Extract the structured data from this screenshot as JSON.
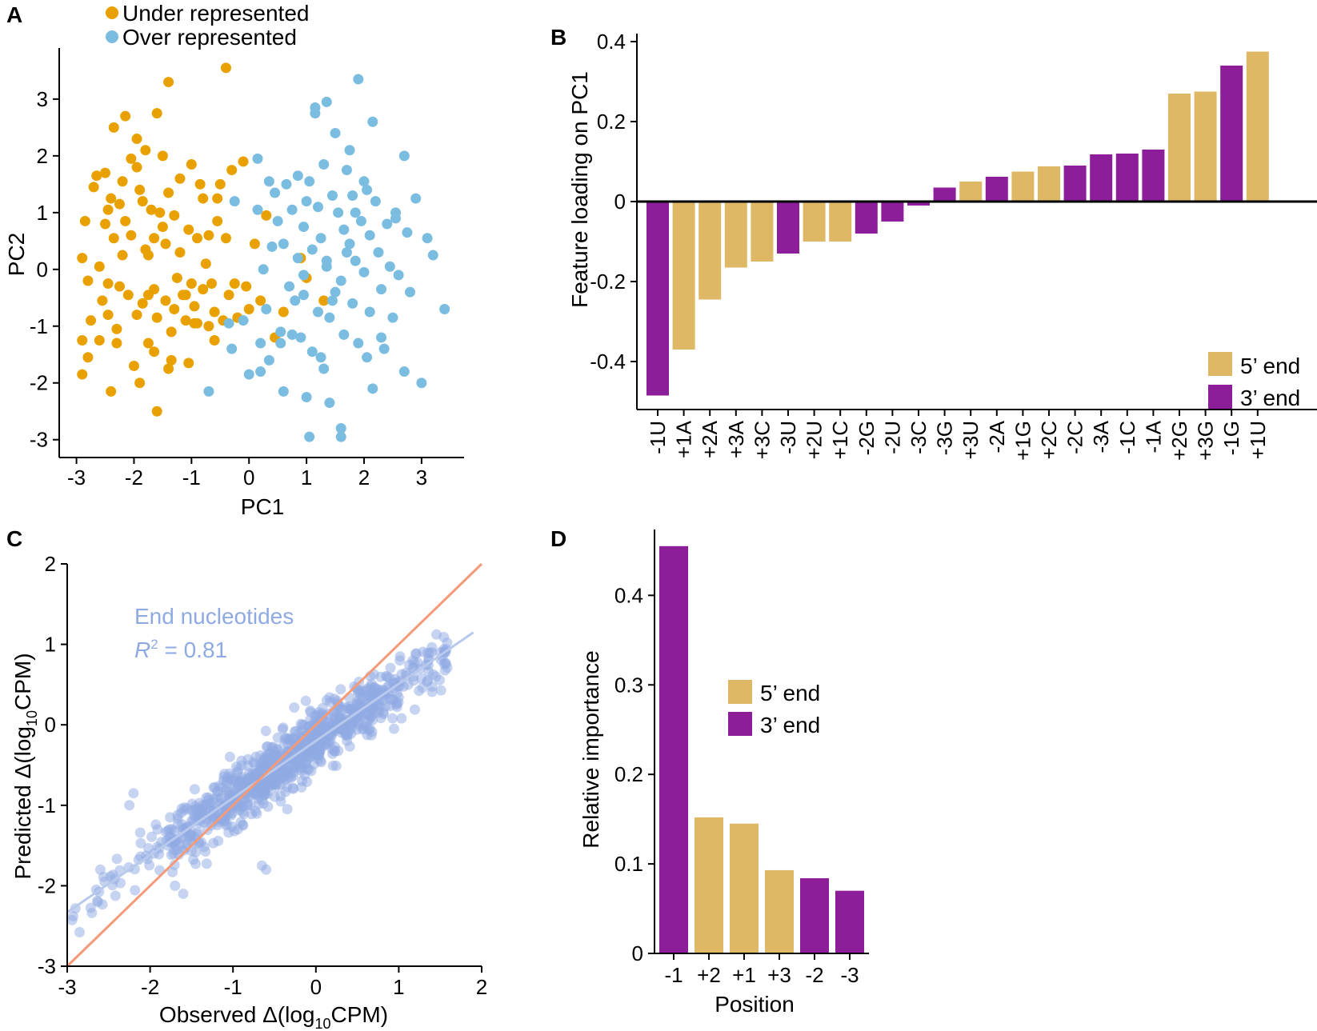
{
  "colors": {
    "under": "#e8a100",
    "over": "#7bbde0",
    "five_end": "#dfb865",
    "three_end": "#8c1f99",
    "scatter": "#8faae3",
    "fit_line": "#b9c9ec",
    "identity_line": "#f49a78"
  },
  "panels": [
    {
      "id": "A",
      "letter": "A"
    },
    {
      "id": "B",
      "letter": "B"
    },
    {
      "id": "C",
      "letter": "C"
    },
    {
      "id": "D",
      "letter": "D"
    }
  ],
  "chart_data": [
    {
      "panel": "A",
      "type": "scatter",
      "xlabel": "PC1",
      "ylabel": "PC2",
      "xlim": [
        -3.3,
        3.6
      ],
      "ylim": [
        -3.3,
        3.9
      ],
      "xticks": [
        -3,
        -2,
        -1,
        0,
        1,
        2,
        3
      ],
      "yticks": [
        -3,
        -2,
        -1,
        0,
        1,
        2,
        3
      ],
      "legend": {
        "position": "top-left",
        "entries": [
          "Under represented",
          "Over represented"
        ]
      },
      "series": [
        {
          "name": "Under represented",
          "x": [
            -2.85,
            -2.9,
            -2.8,
            -2.9,
            -2.75,
            -2.7,
            -2.65,
            -2.6,
            -2.6,
            -2.55,
            -2.5,
            -2.5,
            -2.45,
            -2.45,
            -2.4,
            -2.4,
            -2.35,
            -2.35,
            -2.3,
            -2.3,
            -2.25,
            -2.2,
            -2.2,
            -2.15,
            -2.15,
            -2.1,
            -2.05,
            -2.05,
            -2.0,
            -1.95,
            -1.95,
            -1.9,
            -1.9,
            -1.85,
            -1.85,
            -1.8,
            -1.8,
            -1.75,
            -1.75,
            -1.7,
            -1.65,
            -1.65,
            -1.6,
            -1.6,
            -1.55,
            -1.5,
            -1.5,
            -1.45,
            -1.45,
            -1.4,
            -1.4,
            -1.35,
            -1.35,
            -1.3,
            -1.3,
            -1.25,
            -1.2,
            -1.2,
            -1.15,
            -1.1,
            -1.05,
            -1.05,
            -1.0,
            -1.0,
            -0.95,
            -0.9,
            -0.9,
            -0.85,
            -0.8,
            -0.8,
            -0.75,
            -0.7,
            -0.7,
            -0.65,
            -0.6,
            -0.6,
            -0.55,
            -0.5,
            -0.45,
            -0.4,
            -0.35,
            -0.3,
            -0.25,
            -0.2,
            -0.1,
            -0.05,
            0.0,
            0.1,
            0.2,
            0.3,
            0.45,
            0.6,
            0.9,
            1.0,
            1.3,
            -1.4,
            -0.4,
            -1.6,
            -2.8,
            -1.1,
            -1.95,
            -2.45,
            -1.75,
            -0.95,
            -2.25,
            -1.65,
            -0.55,
            -2.9
          ],
          "y": [
            0.85,
            0.2,
            -0.2,
            -1.25,
            -0.9,
            1.45,
            1.65,
            0.05,
            -1.25,
            -0.55,
            0.8,
            1.7,
            -0.25,
            -0.8,
            1.25,
            -2.15,
            0.55,
            2.5,
            -1.05,
            -1.3,
            -0.3,
            1.55,
            0.25,
            0.85,
            2.7,
            -0.45,
            1.95,
            0.6,
            -1.7,
            -0.8,
            1.8,
            1.4,
            -2.0,
            1.2,
            -0.6,
            0.35,
            2.1,
            -1.3,
            0.25,
            1.05,
            0.55,
            -0.35,
            -0.85,
            -2.5,
            1.0,
            0.75,
            2.0,
            -0.55,
            0.45,
            1.35,
            3.3,
            -1.1,
            -1.6,
            0.95,
            -0.7,
            -0.15,
            0.3,
            1.6,
            -0.45,
            -0.45,
            -1.65,
            0.7,
            1.85,
            -0.25,
            -0.65,
            0.55,
            -0.95,
            1.5,
            1.25,
            -0.35,
            0.1,
            0.6,
            -1.0,
            -0.25,
            -0.75,
            -1.25,
            0.85,
            1.5,
            -0.9,
            0.55,
            -0.45,
            1.75,
            -0.25,
            -0.85,
            1.9,
            -0.3,
            -0.7,
            0.45,
            -0.55,
            0.95,
            -1.2,
            -0.75,
            0.2,
            -0.15,
            -0.55,
            -1.75,
            3.55,
            2.75,
            -1.55,
            -0.9,
            2.3,
            1.05,
            -0.45,
            -0.95,
            1.15,
            -1.45,
            1.25,
            -1.85
          ],
          "color_key": "under"
        },
        {
          "name": "Over represented",
          "x": [
            -0.7,
            -0.3,
            -0.25,
            -0.1,
            0.15,
            0.15,
            0.2,
            0.25,
            0.3,
            0.35,
            0.4,
            0.45,
            0.5,
            0.55,
            0.6,
            0.6,
            0.65,
            0.7,
            0.75,
            0.8,
            0.85,
            0.85,
            0.9,
            0.95,
            0.95,
            1.0,
            1.0,
            1.05,
            1.1,
            1.1,
            1.15,
            1.2,
            1.2,
            1.25,
            1.3,
            1.3,
            1.35,
            1.35,
            1.4,
            1.45,
            1.5,
            1.5,
            1.55,
            1.6,
            1.65,
            1.65,
            1.7,
            1.75,
            1.75,
            1.8,
            1.8,
            1.85,
            1.9,
            1.9,
            1.95,
            2.0,
            2.0,
            2.05,
            2.1,
            2.1,
            2.15,
            2.2,
            2.25,
            2.3,
            2.35,
            2.4,
            2.45,
            2.5,
            2.55,
            2.6,
            2.7,
            2.75,
            2.8,
            2.9,
            3.0,
            3.1,
            3.2,
            3.4,
            1.85,
            1.4,
            1.05,
            1.6,
            1.6,
            0.55,
            2.7,
            2.15,
            1.35,
            0.95,
            1.25,
            0.2,
            -0.35,
            0.0,
            0.35,
            0.75,
            1.15,
            1.45,
            1.7,
            2.05,
            2.3,
            2.55
          ],
          "y": [
            -2.15,
            -1.4,
            1.2,
            -0.9,
            1.95,
            1.05,
            -1.3,
            0.0,
            -0.7,
            -1.6,
            0.4,
            1.35,
            0.85,
            -1.1,
            -2.15,
            0.45,
            1.5,
            -0.3,
            1.05,
            -0.55,
            0.2,
            1.65,
            -1.2,
            0.75,
            -0.1,
            1.2,
            -2.25,
            1.55,
            -1.45,
            0.35,
            2.75,
            -0.75,
            1.1,
            0.55,
            1.85,
            -1.75,
            0.05,
            2.95,
            -0.85,
            1.3,
            -0.4,
            2.4,
            1.0,
            -0.2,
            0.7,
            -1.15,
            1.75,
            0.45,
            2.1,
            -0.6,
            1.3,
            0.15,
            3.35,
            -1.3,
            0.85,
            -0.05,
            1.55,
            -1.55,
            0.6,
            -0.75,
            2.6,
            1.2,
            0.3,
            -0.35,
            -1.4,
            0.8,
            0.05,
            -0.85,
            1.0,
            -0.1,
            2.0,
            0.65,
            -0.4,
            1.25,
            -2.0,
            0.55,
            0.25,
            -0.7,
            1.0,
            -2.35,
            -2.95,
            -2.8,
            -2.95,
            -1.3,
            -1.8,
            -2.1,
            0.15,
            -0.45,
            -1.55,
            -1.8,
            -0.95,
            -1.85,
            1.55,
            -1.15,
            2.85,
            -0.55,
            0.3,
            1.4,
            -1.2,
            0.9
          ],
          "color_key": "over"
        }
      ]
    },
    {
      "panel": "B",
      "type": "bar",
      "ylabel": "Feature loading on PC1",
      "ylim": [
        -0.52,
        0.42
      ],
      "yticks": [
        -0.4,
        -0.2,
        0,
        0.2,
        0.4
      ],
      "ytick_labels": [
        "-0.4",
        "-0.2",
        "0",
        "0.2",
        "0.4"
      ],
      "legend": {
        "position": "bottom-right",
        "entries": [
          "5’ end",
          "3’ end"
        ]
      },
      "categories": [
        "-1U",
        "+1A",
        "+2A",
        "+3A",
        "+3C",
        "-3U",
        "+2U",
        "+1C",
        "-2G",
        "-2U",
        "-3C",
        "-3G",
        "+3U",
        "-2A",
        "+1G",
        "+2C",
        "-2C",
        "-3A",
        "-1C",
        "-1A",
        "+2G",
        "+3G",
        "-1G",
        "+1U"
      ],
      "values": [
        -0.485,
        -0.37,
        -0.245,
        -0.165,
        -0.15,
        -0.13,
        -0.1,
        -0.1,
        -0.08,
        -0.05,
        -0.01,
        0.035,
        0.05,
        0.062,
        0.075,
        0.088,
        0.09,
        0.118,
        0.12,
        0.13,
        0.27,
        0.275,
        0.34,
        0.375
      ],
      "groups": [
        "3",
        "5",
        "5",
        "5",
        "5",
        "3",
        "5",
        "5",
        "3",
        "3",
        "3",
        "3",
        "5",
        "3",
        "5",
        "5",
        "3",
        "3",
        "3",
        "3",
        "5",
        "5",
        "3",
        "5"
      ]
    },
    {
      "panel": "C",
      "type": "scatter",
      "xlabel_main": "Observed Δ(log",
      "xlabel_sub": "10",
      "xlabel_end": "CPM)",
      "ylabel_main": "Predicted Δ(log",
      "ylabel_sub": "10",
      "ylabel_end": "CPM)",
      "xlim": [
        -3,
        2
      ],
      "ylim": [
        -3,
        2
      ],
      "xticks": [
        -3,
        -2,
        -1,
        0,
        1,
        2
      ],
      "yticks": [
        -3,
        -2,
        -1,
        0,
        1,
        2
      ],
      "annotation_title": "End nucleotides",
      "annotation_r": "R",
      "annotation_sup": "2",
      "annotation_value": " = 0.81",
      "fit_line": {
        "slope": 0.71,
        "intercept": -0.2,
        "x_range": [
          -3,
          1.9
        ]
      },
      "identity_line": {
        "slope": 1,
        "intercept": 0,
        "x_range": [
          -3,
          2
        ]
      },
      "n_points": 950,
      "point_seed": 7,
      "outliers": {
        "x": [
          -2.65,
          -2.6,
          -2.55,
          -2.2,
          -2.25,
          -1.6,
          -1.7,
          -0.65,
          -0.6,
          1.4,
          1.5,
          1.35,
          1.45
        ],
        "y": [
          -2.05,
          -1.8,
          -1.95,
          -0.85,
          -1.0,
          -2.1,
          -2.0,
          -1.75,
          -1.8,
          0.9,
          0.9,
          0.55,
          0.6
        ]
      }
    },
    {
      "panel": "D",
      "type": "bar",
      "xlabel": "Position",
      "ylabel": "Relative importance",
      "ylim": [
        0,
        0.47
      ],
      "yticks": [
        0,
        0.1,
        0.2,
        0.3,
        0.4
      ],
      "ytick_labels": [
        "0",
        "0.1",
        "0.2",
        "0.3",
        "0.4"
      ],
      "legend": {
        "position": "center",
        "entries": [
          "5’ end",
          "3’ end"
        ]
      },
      "categories": [
        "-1",
        "+2",
        "+1",
        "+3",
        "-2",
        "-3"
      ],
      "values": [
        0.455,
        0.152,
        0.145,
        0.093,
        0.084,
        0.07
      ],
      "groups": [
        "3",
        "5",
        "5",
        "5",
        "3",
        "3"
      ]
    }
  ]
}
